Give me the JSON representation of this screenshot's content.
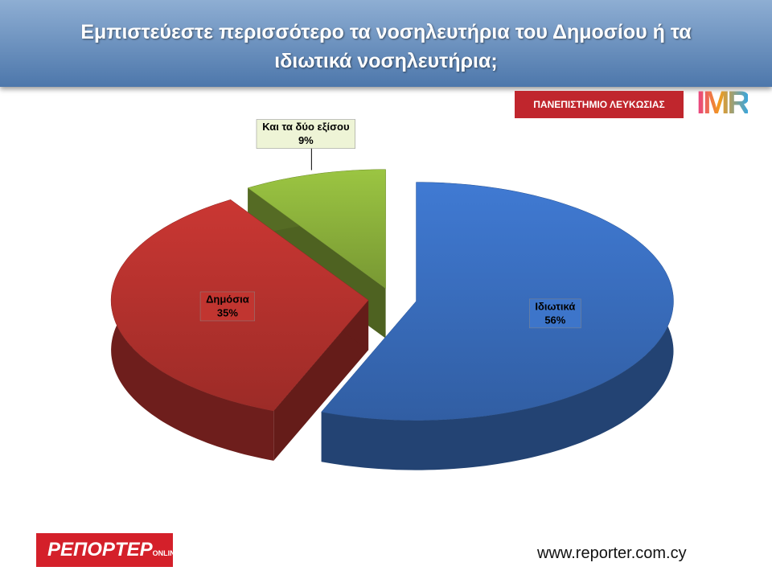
{
  "chart_data": {
    "type": "pie",
    "title": "Εμπιστεύεστε περισσότερο τα νοσηλευτήρια του Δημοσίου ή τα ιδιωτικά νοσηλευτήρια;",
    "categories": [
      "Ιδιωτικά",
      "Δημόσια",
      "Και τα δύο εξίσου"
    ],
    "values": [
      56,
      35,
      9
    ],
    "value_labels": [
      "56%",
      "35%",
      "9%"
    ],
    "colors": [
      "#3a6fc0",
      "#b8322e",
      "#8db33c"
    ]
  },
  "logos": {
    "university": "ΠΑΝΕΠΙΣΤΗΜΙΟ ΛΕΥΚΩΣΙΑΣ",
    "imr": "IMR",
    "reporter": "ΡΕΠΟΡΤΕΡ",
    "reporter_sub": "ONLINE"
  },
  "footer": {
    "url": "www.reporter.com.cy"
  }
}
